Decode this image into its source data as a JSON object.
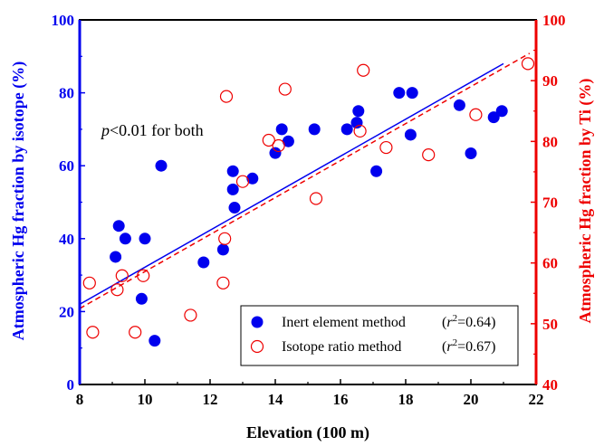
{
  "chart_data": {
    "type": "scatter",
    "xlabel": "Elevation (100 m)",
    "ylabel_left": "Atmospheric Hg fraction  by isotope (%)",
    "ylabel_right": "Atmospheric Hg fraction by Ti (%)",
    "xlim": [
      8,
      22
    ],
    "xticks": [
      8,
      10,
      12,
      14,
      16,
      18,
      20,
      22
    ],
    "ylim_left": [
      0,
      100
    ],
    "yticks_left": [
      0,
      20,
      40,
      60,
      80,
      100
    ],
    "ylim_right": [
      40,
      100
    ],
    "yticks_right": [
      40,
      50,
      60,
      70,
      80,
      90,
      100
    ],
    "annotation": {
      "italic": "p",
      "text": "<0.01 for both"
    },
    "colors": {
      "left_axis": "#0000ee",
      "right_axis": "#ee0000",
      "inert": "#0000ee",
      "isotope": "#ee0000"
    },
    "legend": {
      "placement": "bottom-right"
    },
    "series": [
      {
        "name": "Inert element method",
        "r2_label": "(r²=0.64)",
        "r2_prefix": "(",
        "r2_var": "r",
        "r2_sup": "2",
        "r2_value": "=0.64)",
        "axis": "left",
        "marker": "filled-circle",
        "points": [
          [
            9.1,
            35
          ],
          [
            9.2,
            43.5
          ],
          [
            9.4,
            40
          ],
          [
            9.9,
            23.5
          ],
          [
            10.0,
            40
          ],
          [
            10.3,
            12
          ],
          [
            10.5,
            60
          ],
          [
            11.8,
            33.5
          ],
          [
            12.4,
            37
          ],
          [
            12.7,
            58.5
          ],
          [
            12.7,
            53.5
          ],
          [
            12.75,
            48.5
          ],
          [
            13.3,
            56.5
          ],
          [
            14.0,
            63.5
          ],
          [
            14.2,
            70
          ],
          [
            14.4,
            66.7
          ],
          [
            15.2,
            70
          ],
          [
            16.2,
            70
          ],
          [
            16.5,
            71.8
          ],
          [
            16.55,
            75
          ],
          [
            17.1,
            58.5
          ],
          [
            17.8,
            80
          ],
          [
            18.2,
            80
          ],
          [
            18.15,
            68.5
          ],
          [
            19.65,
            76.6
          ],
          [
            20.0,
            63.4
          ],
          [
            20.7,
            73.3
          ],
          [
            20.95,
            75
          ]
        ],
        "fit_line": [
          [
            8.0,
            22
          ],
          [
            21.0,
            88
          ]
        ]
      },
      {
        "name": "Isotope ratio method",
        "r2_label": "(r²=0.67)",
        "r2_prefix": "(",
        "r2_var": "r",
        "r2_sup": "2",
        "r2_value": "=0.67)",
        "axis": "right",
        "marker": "open-circle",
        "points": [
          [
            8.3,
            56.7
          ],
          [
            8.4,
            48.6
          ],
          [
            9.15,
            55.6
          ],
          [
            9.3,
            57.9
          ],
          [
            9.7,
            48.6
          ],
          [
            9.95,
            57.9
          ],
          [
            11.4,
            51.4
          ],
          [
            12.4,
            56.7
          ],
          [
            12.45,
            64.0
          ],
          [
            12.5,
            87.4
          ],
          [
            13.0,
            73.4
          ],
          [
            13.8,
            80.2
          ],
          [
            14.1,
            79.3
          ],
          [
            14.3,
            88.6
          ],
          [
            15.25,
            70.6
          ],
          [
            16.6,
            81.7
          ],
          [
            16.7,
            91.7
          ],
          [
            17.4,
            79.0
          ],
          [
            18.7,
            77.8
          ],
          [
            20.15,
            84.4
          ],
          [
            21.75,
            92.8
          ]
        ],
        "fit_line": [
          [
            8.0,
            52.5
          ],
          [
            21.8,
            94.5
          ]
        ]
      }
    ]
  }
}
